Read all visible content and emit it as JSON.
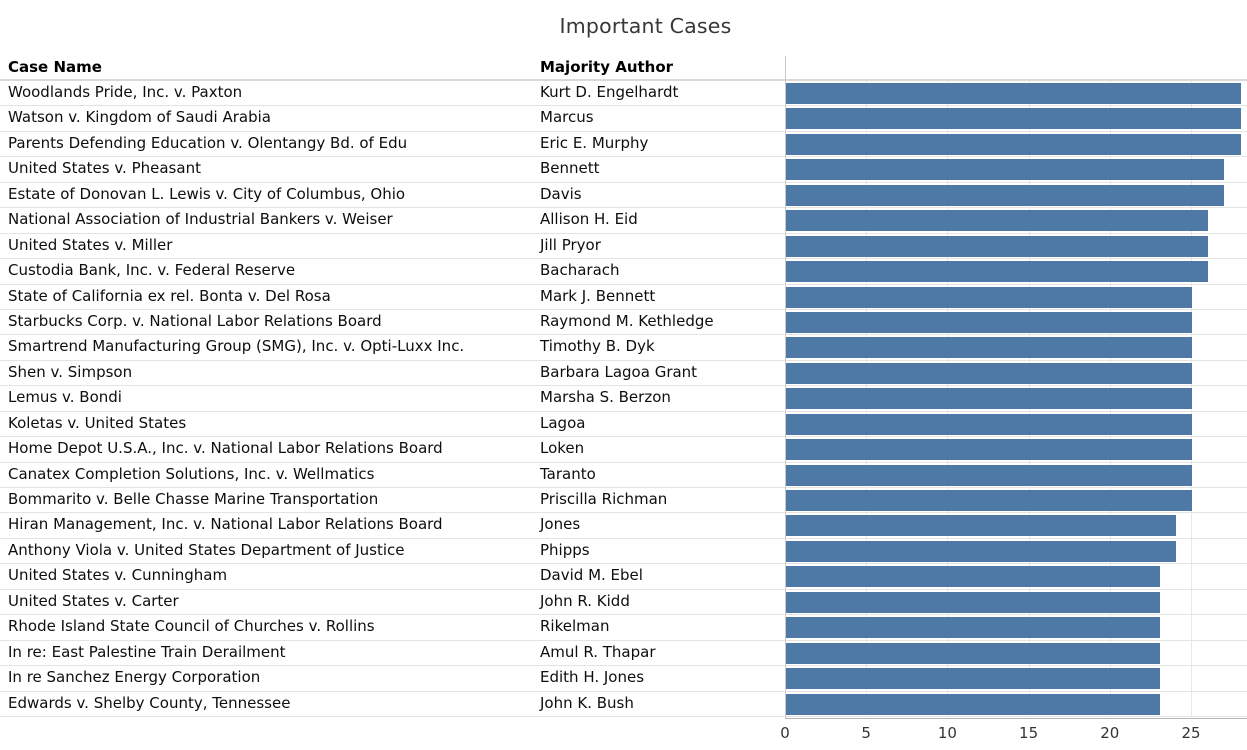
{
  "title": "Important Cases",
  "columns": {
    "case": "Case Name",
    "author": "Majority Author"
  },
  "colors": {
    "bar": "#4e79a7",
    "gridline": "#e8e8e8",
    "row_separator": "#e4e4e4",
    "header_rule": "#d9d9d9",
    "axis_line": "#b5b5b5",
    "title_text": "#373737"
  },
  "chart_data": {
    "type": "bar",
    "orientation": "horizontal",
    "title": "Important Cases",
    "xlabel": "",
    "ylabel": "",
    "xlim": [
      0,
      28.5
    ],
    "x_ticks": [
      0,
      5,
      10,
      15,
      20,
      25
    ],
    "grid": "vertical-light",
    "legend": false,
    "bar_color": "#4e79a7",
    "categories": [
      "Woodlands Pride, Inc. v. Paxton",
      "Watson v. Kingdom of Saudi Arabia",
      "Parents Defending Education v. Olentangy Bd. of Edu",
      "United States v. Pheasant",
      "Estate of Donovan L. Lewis v. City of Columbus, Ohio",
      "National Association of Industrial Bankers v. Weiser",
      "United States v. Miller",
      "Custodia Bank, Inc. v. Federal Reserve",
      "State of California ex rel.  Bonta v.  Del Rosa",
      "Starbucks Corp. v. National Labor Relations Board",
      "Smartrend Manufacturing Group (SMG), Inc. v. Opti-Luxx Inc.",
      "Shen v. Simpson",
      "Lemus v. Bondi",
      "Koletas v. United States",
      "Home Depot U.S.A., Inc. v. National Labor Relations Board",
      "Canatex Completion Solutions, Inc. v. Wellmatics",
      "Bommarito v. Belle Chasse Marine Transportation",
      "Hiran Management, Inc. v. National Labor Relations Board",
      "Anthony Viola v. United States Department of Justice",
      "United States v. Cunningham",
      "United States v. Carter",
      "Rhode Island State Council of Churches v. Rollins",
      "In re: East Palestine Train Derailment",
      "In re Sanchez Energy Corporation",
      "Edwards v. Shelby County, Tennessee"
    ],
    "series": [
      {
        "name": "value",
        "values": [
          28,
          28,
          28,
          27,
          27,
          26,
          26,
          26,
          25,
          25,
          25,
          25,
          25,
          25,
          25,
          25,
          25,
          24,
          24,
          23,
          23,
          23,
          23,
          23,
          23
        ]
      }
    ],
    "rows": [
      {
        "case": "Woodlands Pride, Inc. v. Paxton",
        "author": "Kurt D. Engelhardt",
        "value": 28
      },
      {
        "case": "Watson v. Kingdom of Saudi Arabia",
        "author": "Marcus",
        "value": 28
      },
      {
        "case": "Parents Defending Education v. Olentangy Bd. of Edu",
        "author": "Eric E. Murphy",
        "value": 28
      },
      {
        "case": "United States v. Pheasant",
        "author": "Bennett",
        "value": 27
      },
      {
        "case": "Estate of Donovan L. Lewis v. City of Columbus, Ohio",
        "author": "Davis",
        "value": 27
      },
      {
        "case": "National Association of Industrial Bankers v. Weiser",
        "author": "Allison H. Eid",
        "value": 26
      },
      {
        "case": "United States v. Miller",
        "author": "Jill Pryor",
        "value": 26
      },
      {
        "case": "Custodia Bank, Inc. v. Federal Reserve",
        "author": "Bacharach",
        "value": 26
      },
      {
        "case": "State of California ex rel.  Bonta v.  Del Rosa",
        "author": "Mark J. Bennett",
        "value": 25
      },
      {
        "case": "Starbucks Corp. v. National Labor Relations Board",
        "author": "Raymond M. Kethledge",
        "value": 25
      },
      {
        "case": "Smartrend Manufacturing Group (SMG), Inc. v. Opti-Luxx Inc.",
        "author": "Timothy B. Dyk",
        "value": 25
      },
      {
        "case": "Shen v. Simpson",
        "author": "Barbara Lagoa Grant",
        "value": 25
      },
      {
        "case": "Lemus v. Bondi",
        "author": "Marsha S. Berzon",
        "value": 25
      },
      {
        "case": "Koletas v. United States",
        "author": "Lagoa",
        "value": 25
      },
      {
        "case": "Home Depot U.S.A., Inc. v. National Labor Relations Board",
        "author": "Loken",
        "value": 25
      },
      {
        "case": "Canatex Completion Solutions, Inc. v. Wellmatics",
        "author": "Taranto",
        "value": 25
      },
      {
        "case": "Bommarito v. Belle Chasse Marine Transportation",
        "author": "Priscilla Richman",
        "value": 25
      },
      {
        "case": "Hiran Management, Inc. v. National Labor Relations Board",
        "author": "Jones",
        "value": 24
      },
      {
        "case": "Anthony Viola v. United States Department of Justice",
        "author": "Phipps",
        "value": 24
      },
      {
        "case": "United States v. Cunningham",
        "author": "David M. Ebel",
        "value": 23
      },
      {
        "case": "United States v. Carter",
        "author": "John R. Kidd",
        "value": 23
      },
      {
        "case": "Rhode Island State Council of Churches v. Rollins",
        "author": "Rikelman",
        "value": 23
      },
      {
        "case": "In re: East Palestine Train Derailment",
        "author": "Amul R. Thapar",
        "value": 23
      },
      {
        "case": "In re Sanchez Energy Corporation",
        "author": "Edith H. Jones",
        "value": 23
      },
      {
        "case": "Edwards v. Shelby County, Tennessee",
        "author": "John K. Bush",
        "value": 23
      }
    ]
  }
}
